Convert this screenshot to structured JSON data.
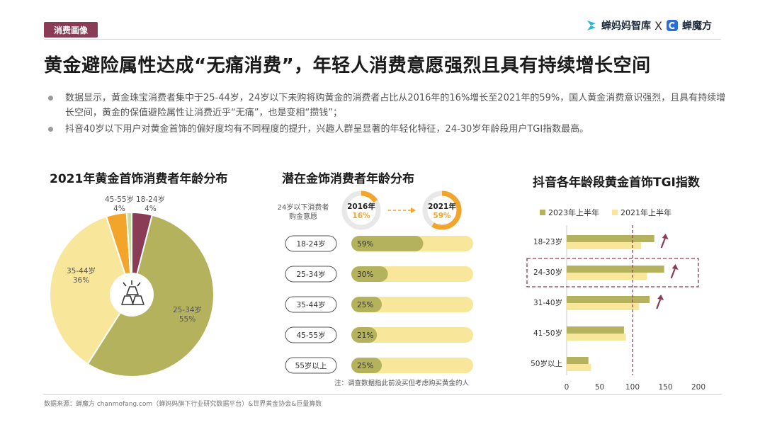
{
  "header": {
    "tag": "消费画像",
    "brand_left": "蝉妈妈智库",
    "separator": "X",
    "brand_right": "蝉魔方"
  },
  "title": "黄金避险属性达成“无痛消费”，年轻人消费意愿强烈且具有持续增长空间",
  "bullets": [
    "数据显示，黄金珠宝消费者集中于25-44岁，24岁以下未购将购黄金的消费者占比从2016年的16%增长至2021年的59%，国人黄金消费意识强烈，且具有持续增长空间，黄金的保值避险属性让消费近乎“无痛”，也是变相“攒钱”；",
    "抖音40岁以下用户对黄金首饰的偏好度均有不同程度的提升，兴趣人群呈显著的年轻化特征，24-30岁年龄段用户TGI指数最高。"
  ],
  "colors": {
    "brand": "#8a3b55",
    "olive": "#b5b25e",
    "cream": "#f8e69b",
    "orange": "#f3a52b",
    "green_light": "#c9dd9b",
    "donut_track": "#e8e8e8"
  },
  "chart_data": [
    {
      "type": "pie",
      "title": "2021年黄金首饰消费者年龄分布",
      "slices": [
        {
          "label": "18-24岁",
          "value": 4,
          "value_label": "4%",
          "color": "#8a3b55"
        },
        {
          "label": "25-34岁",
          "value": 55,
          "value_label": "55%",
          "color": "#b5b25e"
        },
        {
          "label": "35-44岁",
          "value": 36,
          "value_label": "36%",
          "color": "#f8e69b"
        },
        {
          "label": "45-55岁",
          "value": 4,
          "value_label": "4%",
          "color": "#f3a52b"
        },
        {
          "label": "",
          "value": 1,
          "value_label": "",
          "color": "#c9dd9b"
        }
      ],
      "center_icon": "gold-bars-icon"
    },
    {
      "type": "bar",
      "title": "潜在金饰消费者年龄分布",
      "donuts": {
        "caption": "24岁以下消费者购金意愿",
        "items": [
          {
            "year": "2016年",
            "value": 16,
            "value_label": "16%"
          },
          {
            "year": "2021年",
            "value": 59,
            "value_label": "59%"
          }
        ]
      },
      "categories": [
        "18-24岁",
        "25-34岁",
        "35-44岁",
        "45-55岁",
        "55岁以上"
      ],
      "values": [
        59,
        30,
        25,
        21,
        25
      ],
      "value_labels": [
        "59%",
        "30%",
        "25%",
        "21%",
        "25%"
      ],
      "ylim": [
        0,
        100
      ],
      "note": "注：调查数据指此前没买但考虑购买黄金的人"
    },
    {
      "type": "bar",
      "orientation": "horizontal",
      "title": "抖音各年龄段黄金首饰TGI指数",
      "categories": [
        "18-23岁",
        "24-30岁",
        "31-40岁",
        "41-50岁",
        "50岁以上"
      ],
      "series": [
        {
          "name": "2023年上半年",
          "values": [
            133,
            148,
            126,
            87,
            33
          ],
          "color": "#b5b25e"
        },
        {
          "name": "2021年上半年",
          "values": [
            113,
            122,
            110,
            90,
            37
          ],
          "color": "#f8e69b"
        }
      ],
      "xlim": [
        0,
        200
      ],
      "xticks": [
        "0",
        "50",
        "100",
        "150",
        "200"
      ],
      "reference_line": 100,
      "highlight_category": "24-30岁",
      "trend_up_categories": [
        "18-23岁",
        "24-30岁",
        "31-40岁"
      ]
    }
  ],
  "footer": {
    "source": "数据来源：蝉魔方 chanmofang.com（蝉妈妈旗下行业研究数据平台）&世界黄金协会&巨量算数"
  }
}
